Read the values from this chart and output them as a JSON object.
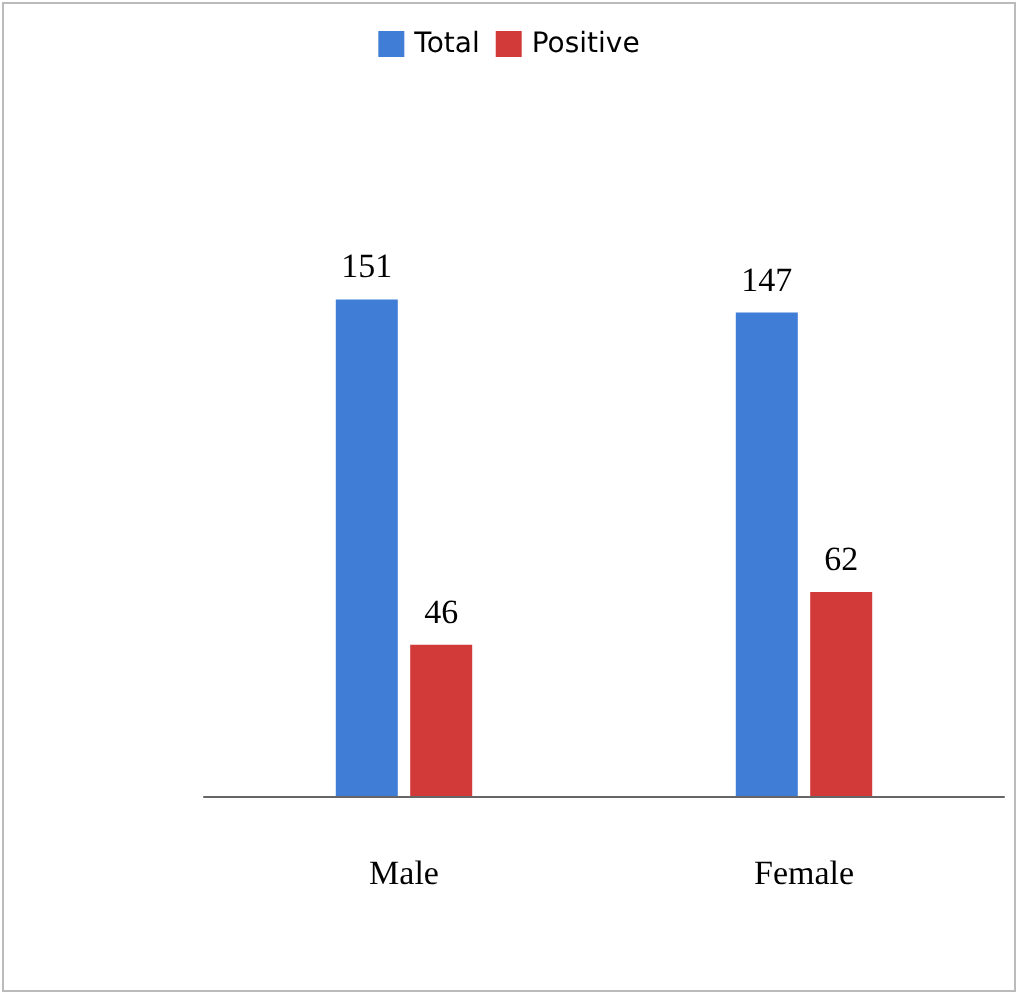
{
  "chart_data": {
    "type": "bar",
    "categories": [
      "Male",
      "Female"
    ],
    "series": [
      {
        "name": "Total",
        "color": "#3f7dd6",
        "values": [
          151,
          147
        ]
      },
      {
        "name": "Positive",
        "color": "#d23a3a",
        "values": [
          46,
          62
        ]
      }
    ],
    "data_labels": true,
    "legend": "top"
  }
}
